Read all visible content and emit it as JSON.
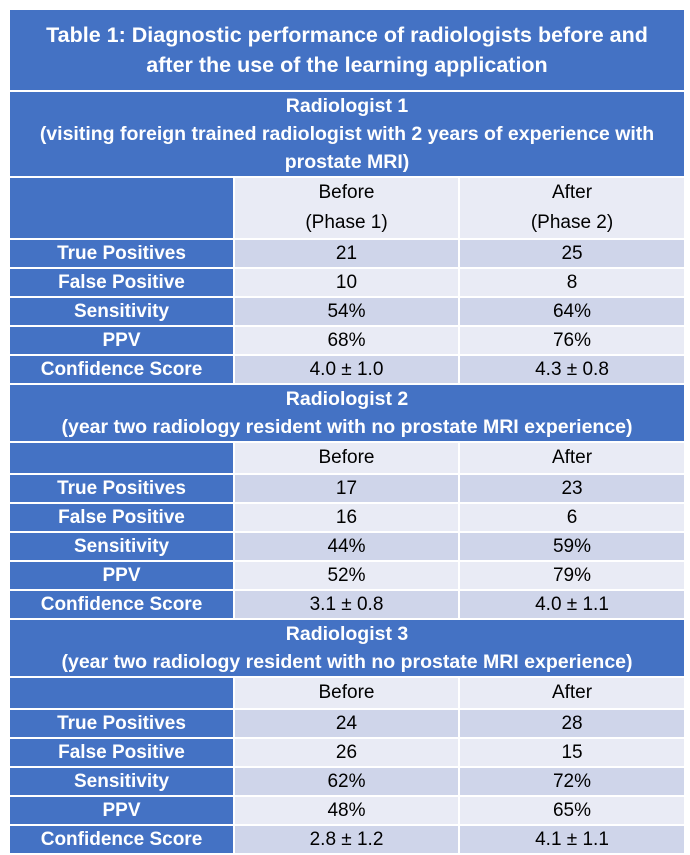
{
  "title": {
    "line1": "Table 1: Diagnostic performance of radiologists before and",
    "line2": "after the use of the learning application"
  },
  "sections": [
    {
      "header_line1": "Radiologist 1",
      "header_line2": "(visiting foreign trained radiologist with 2 years of experience with",
      "header_line3": "prostate MRI)",
      "before_line1": "Before",
      "before_line2": "(Phase 1)",
      "after_line1": "After",
      "after_line2": "(Phase 2)",
      "rows": [
        {
          "label": "True Positives",
          "before": "21",
          "after": "25"
        },
        {
          "label": "False Positive",
          "before": "10",
          "after": "8"
        },
        {
          "label": "Sensitivity",
          "before": "54%",
          "after": "64%"
        },
        {
          "label": "PPV",
          "before": "68%",
          "after": "76%"
        },
        {
          "label": "Confidence Score",
          "before": "4.0 ± 1.0",
          "after": "4.3 ± 0.8"
        }
      ]
    },
    {
      "header_line1": "Radiologist 2",
      "header_line2": "(year two radiology resident with no prostate MRI experience)",
      "before_line1": "Before",
      "after_line1": "After",
      "rows": [
        {
          "label": "True Positives",
          "before": "17",
          "after": "23"
        },
        {
          "label": "False Positive",
          "before": "16",
          "after": "6"
        },
        {
          "label": "Sensitivity",
          "before": "44%",
          "after": "59%"
        },
        {
          "label": "PPV",
          "before": "52%",
          "after": "79%"
        },
        {
          "label": "Confidence Score",
          "before": "3.1 ± 0.8",
          "after": "4.0 ± 1.1"
        }
      ]
    },
    {
      "header_line1": "Radiologist 3",
      "header_line2": "(year two radiology resident with no prostate MRI experience)",
      "before_line1": "Before",
      "after_line1": "After",
      "rows": [
        {
          "label": "True Positives",
          "before": "24",
          "after": "28"
        },
        {
          "label": "False Positive",
          "before": "26",
          "after": "15"
        },
        {
          "label": "Sensitivity",
          "before": "62%",
          "after": "72%"
        },
        {
          "label": "PPV",
          "before": "48%",
          "after": "65%"
        },
        {
          "label": "Confidence Score",
          "before": "2.8 ± 1.2",
          "after": "4.1 ± 1.1"
        }
      ]
    }
  ],
  "colors": {
    "header_blue": "#4472c4",
    "row_light": "#e9ebf5",
    "row_dark": "#cfd5ea"
  }
}
